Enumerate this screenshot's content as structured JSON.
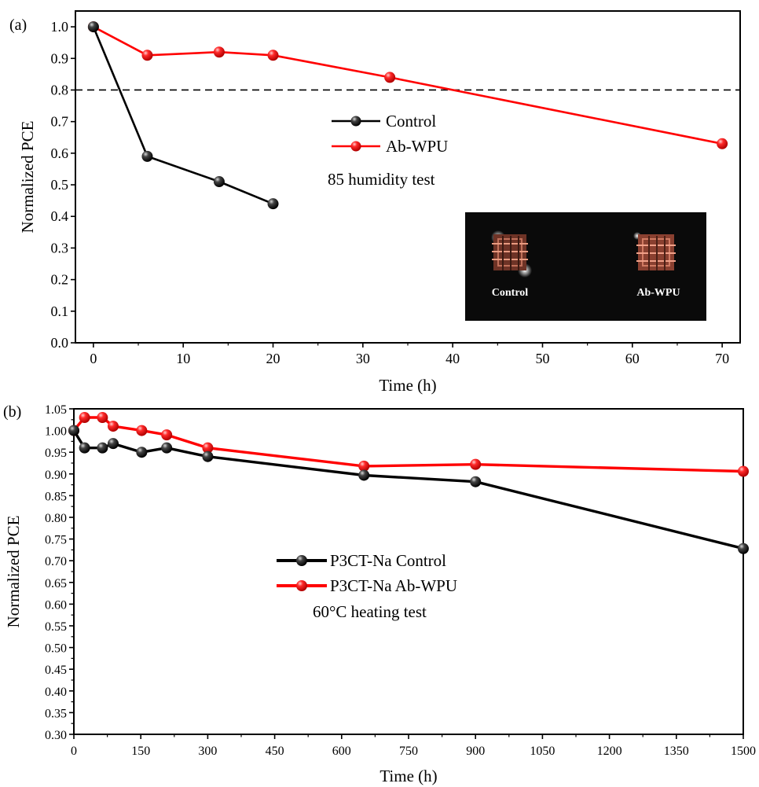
{
  "chart_data": [
    {
      "panel_label": "(a)",
      "type": "line",
      "xlabel": "Time (h)",
      "ylabel": "Normalized PCE",
      "xlim": [
        -2,
        72
      ],
      "ylim": [
        0,
        1.05
      ],
      "xticks": [
        "0",
        "10",
        "20",
        "30",
        "40",
        "50",
        "60",
        "70"
      ],
      "yticks": [
        "0.0",
        "0.1",
        "0.2",
        "0.3",
        "0.4",
        "0.5",
        "0.6",
        "0.7",
        "0.8",
        "0.9",
        "1.0"
      ],
      "reference_line": {
        "y": 0.8,
        "style": "dashed",
        "color": "#000000"
      },
      "series": [
        {
          "name": "Control",
          "color": "#000000",
          "marker_color": "#222222",
          "x": [
            0,
            6,
            14,
            20
          ],
          "y": [
            1.0,
            0.59,
            0.51,
            0.44
          ]
        },
        {
          "name": "Ab-WPU",
          "color": "#ff0000",
          "marker_color": "#ff2020",
          "x": [
            0,
            6,
            14,
            20,
            33,
            70
          ],
          "y": [
            1.0,
            0.91,
            0.92,
            0.91,
            0.84,
            0.63
          ]
        }
      ],
      "annotation": "85 humidity test",
      "inset_photo": {
        "labels": [
          "Control",
          "Ab-WPU"
        ]
      },
      "legend": "center"
    },
    {
      "panel_label": "(b)",
      "type": "line",
      "xlabel": "Time (h)",
      "ylabel": "Normalized PCE",
      "xlim": [
        0,
        1500
      ],
      "ylim": [
        0.3,
        1.05
      ],
      "xticks": [
        "0",
        "150",
        "300",
        "450",
        "600",
        "750",
        "900",
        "1050",
        "1200",
        "1350",
        "1500"
      ],
      "yticks": [
        "0.30",
        "0.35",
        "0.40",
        "0.45",
        "0.50",
        "0.55",
        "0.60",
        "0.65",
        "0.70",
        "0.75",
        "0.80",
        "0.85",
        "0.90",
        "0.95",
        "1.00",
        "1.05"
      ],
      "series": [
        {
          "name": "P3CT-Na Control",
          "color": "#000000",
          "marker_color": "#222222",
          "x": [
            0,
            24,
            64,
            88,
            152,
            208,
            300,
            650,
            900,
            1500
          ],
          "y": [
            1.0,
            0.96,
            0.96,
            0.97,
            0.95,
            0.96,
            0.94,
            0.897,
            0.882,
            0.728
          ]
        },
        {
          "name": "P3CT-Na Ab-WPU",
          "color": "#ff0000",
          "marker_color": "#ff2020",
          "x": [
            0,
            24,
            64,
            88,
            152,
            208,
            300,
            650,
            900,
            1500
          ],
          "y": [
            1.0,
            1.03,
            1.03,
            1.01,
            1.0,
            0.99,
            0.96,
            0.918,
            0.922,
            0.906
          ]
        }
      ],
      "annotation": "60°C heating test",
      "legend": "center"
    }
  ]
}
